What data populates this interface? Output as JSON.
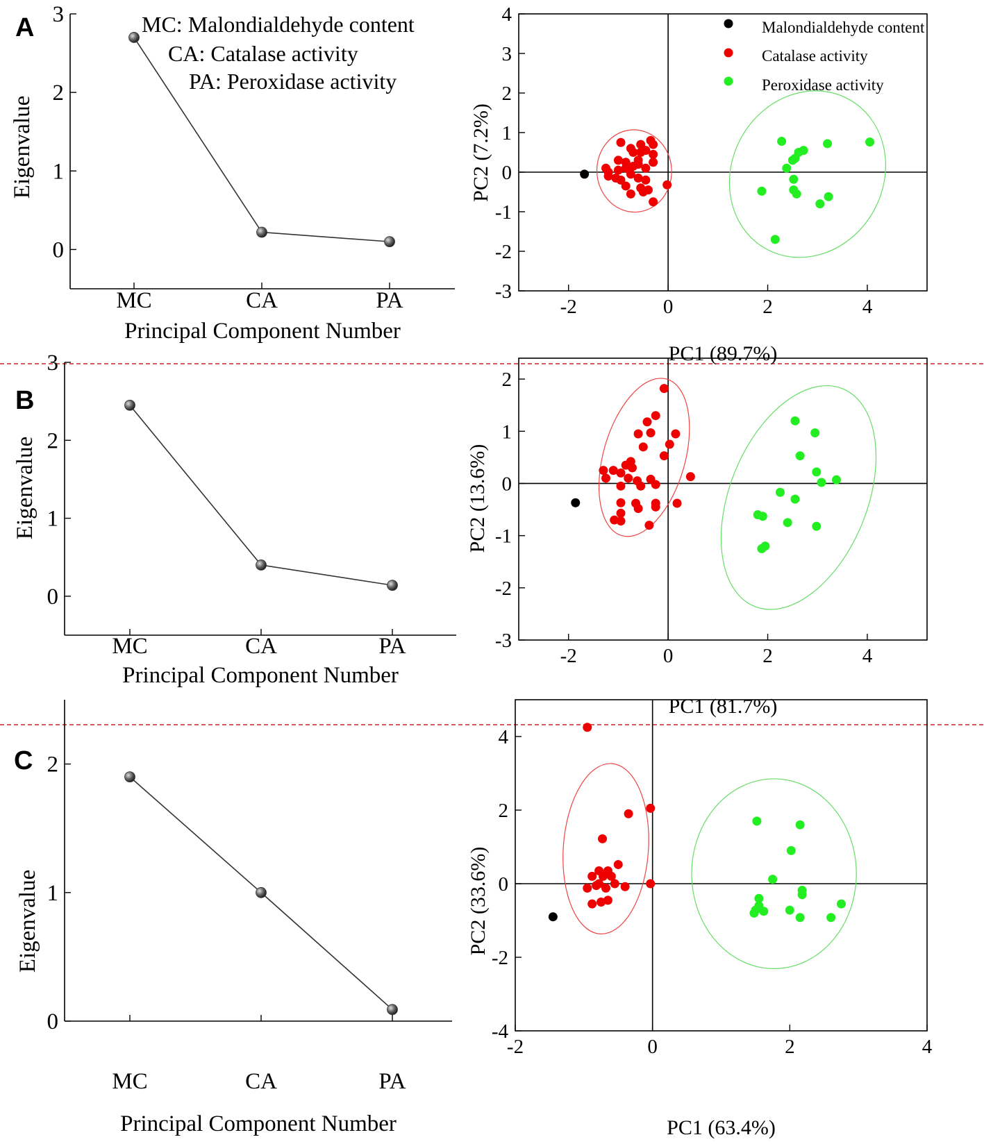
{
  "colors": {
    "mc": "#000000",
    "ca": "#ee0000",
    "pa": "#22ee22",
    "ca_ellipse": "#ee4444",
    "pa_ellipse": "#66dd66",
    "separator": "#cc2222",
    "scree_line": "#333333"
  },
  "scree_abbreviations": {
    "mc": "MC: Malondialdehyde content",
    "ca": "CA: Catalase activity",
    "pa": "PA: Peroxidase activity"
  },
  "legend": {
    "mc": "Malondialdehyde content",
    "ca": "Catalase activity",
    "pa": "Peroxidase activity"
  },
  "chart_data": [
    {
      "panel": "A",
      "kind": "scree",
      "type": "line",
      "categories": [
        "MC",
        "CA",
        "PA"
      ],
      "values": [
        2.7,
        0.22,
        0.1
      ],
      "xlabel": "Principal Component Number",
      "ylabel": "Eigenvalue",
      "ylim": [
        -0.5,
        3
      ],
      "yticks": [
        0,
        1,
        2,
        3
      ],
      "tick_labels": [
        "0",
        "1",
        "2",
        "3"
      ]
    },
    {
      "panel": "A",
      "kind": "pca",
      "type": "scatter",
      "xlabel": "PC1 (89.7%)",
      "ylabel": "PC2 (7.2%)",
      "xlim": [
        -3,
        5.2
      ],
      "ylim": [
        -3,
        4
      ],
      "xticks": [
        -2,
        0,
        2,
        4
      ],
      "yticks": [
        -3,
        -2,
        -1,
        0,
        1,
        2,
        3,
        4
      ],
      "xtick_labels": [
        "-2",
        "0",
        "2",
        "4"
      ],
      "ytick_labels": [
        "-3",
        "-2",
        "-1",
        "0",
        "1",
        "2",
        "3",
        "4"
      ],
      "series": [
        {
          "name": "Malondialdehyde content",
          "key": "mc",
          "points": [
            [
              -1.68,
              -0.05
            ]
          ]
        },
        {
          "name": "Catalase activity",
          "key": "ca",
          "points": [
            [
              -0.95,
              0.75
            ],
            [
              -0.75,
              0.6
            ],
            [
              -0.55,
              0.7
            ],
            [
              -0.35,
              0.8
            ],
            [
              -0.3,
              0.7
            ],
            [
              -0.7,
              0.5
            ],
            [
              -0.55,
              0.5
            ],
            [
              -0.45,
              0.55
            ],
            [
              -1.0,
              0.3
            ],
            [
              -0.85,
              0.25
            ],
            [
              -0.6,
              0.3
            ],
            [
              -0.3,
              0.45
            ],
            [
              -0.3,
              0.25
            ],
            [
              -1.25,
              0.1
            ],
            [
              -1.2,
              0.0
            ],
            [
              -1.0,
              0.05
            ],
            [
              -0.85,
              0.1
            ],
            [
              -0.7,
              0.15
            ],
            [
              -0.6,
              0.2
            ],
            [
              -0.45,
              0.1
            ],
            [
              -1.2,
              -0.1
            ],
            [
              -1.05,
              -0.15
            ],
            [
              -0.95,
              -0.2
            ],
            [
              -0.75,
              -0.05
            ],
            [
              -0.6,
              -0.15
            ],
            [
              -0.45,
              -0.2
            ],
            [
              -0.55,
              -0.4
            ],
            [
              -0.5,
              -0.5
            ],
            [
              -0.4,
              -0.45
            ],
            [
              -0.85,
              -0.35
            ],
            [
              -0.75,
              -0.55
            ],
            [
              -0.3,
              -0.75
            ],
            [
              -0.02,
              -0.32
            ]
          ]
        },
        {
          "name": "Peroxidase activity",
          "key": "pa",
          "points": [
            [
              2.28,
              0.78
            ],
            [
              2.72,
              0.55
            ],
            [
              2.62,
              0.5
            ],
            [
              2.55,
              0.35
            ],
            [
              2.5,
              0.3
            ],
            [
              2.38,
              0.1
            ],
            [
              3.2,
              0.72
            ],
            [
              4.05,
              0.76
            ],
            [
              1.88,
              -0.48
            ],
            [
              2.52,
              -0.45
            ],
            [
              2.58,
              -0.55
            ],
            [
              3.22,
              -0.62
            ],
            [
              3.05,
              -0.8
            ],
            [
              2.52,
              -0.18
            ],
            [
              2.15,
              -1.7
            ]
          ]
        }
      ],
      "ellipses": [
        {
          "key": "ca",
          "cx": -0.68,
          "cy": 0.03,
          "rx": 0.75,
          "ry": 1.04,
          "angle_deg": -4
        },
        {
          "key": "pa",
          "cx": 2.8,
          "cy": -0.05,
          "rx": 1.52,
          "ry": 2.16,
          "angle_deg": 29
        }
      ]
    },
    {
      "panel": "B",
      "kind": "scree",
      "type": "line",
      "categories": [
        "MC",
        "CA",
        "PA"
      ],
      "values": [
        2.45,
        0.4,
        0.14
      ],
      "xlabel": "Principal Component Number",
      "ylabel": "Eigenvalue",
      "ylim": [
        -0.5,
        3
      ],
      "yticks": [
        0,
        1,
        2,
        3
      ],
      "tick_labels": [
        "0",
        "1",
        "2",
        "3"
      ]
    },
    {
      "panel": "B",
      "kind": "pca",
      "type": "scatter",
      "xlabel": "PC1 (81.7%)",
      "ylabel": "PC2 (13.6%)",
      "xlim": [
        -3,
        5.2
      ],
      "ylim": [
        -3,
        2.4
      ],
      "xticks": [
        -2,
        0,
        2,
        4
      ],
      "yticks": [
        -3,
        -2,
        -1,
        0,
        1,
        2
      ],
      "xtick_labels": [
        "-2",
        "0",
        "2",
        "4"
      ],
      "ytick_labels": [
        "-3",
        "-2",
        "-1",
        "0",
        "1",
        "2"
      ],
      "series": [
        {
          "name": "Malondialdehyde content",
          "key": "mc",
          "points": [
            [
              -1.86,
              -0.37
            ]
          ]
        },
        {
          "name": "Catalase activity",
          "key": "ca",
          "points": [
            [
              -0.08,
              1.82
            ],
            [
              -0.25,
              1.3
            ],
            [
              -0.42,
              1.18
            ],
            [
              -0.6,
              0.95
            ],
            [
              -0.35,
              0.97
            ],
            [
              0.15,
              0.95
            ],
            [
              0.03,
              0.75
            ],
            [
              -0.5,
              0.7
            ],
            [
              -0.08,
              0.53
            ],
            [
              -0.75,
              0.42
            ],
            [
              -0.85,
              0.35
            ],
            [
              -1.3,
              0.25
            ],
            [
              -1.1,
              0.25
            ],
            [
              -0.95,
              0.2
            ],
            [
              -0.72,
              0.3
            ],
            [
              -1.25,
              0.1
            ],
            [
              -0.8,
              0.1
            ],
            [
              -0.62,
              0.05
            ],
            [
              -0.35,
              0.08
            ],
            [
              0.45,
              0.13
            ],
            [
              -0.95,
              -0.05
            ],
            [
              -0.55,
              -0.05
            ],
            [
              -0.25,
              -0.02
            ],
            [
              -0.95,
              -0.37
            ],
            [
              -0.65,
              -0.38
            ],
            [
              -0.25,
              -0.38
            ],
            [
              -0.6,
              -0.48
            ],
            [
              -0.25,
              -0.45
            ],
            [
              0.18,
              -0.38
            ],
            [
              -0.95,
              -0.57
            ],
            [
              -1.08,
              -0.7
            ],
            [
              -0.95,
              -0.72
            ],
            [
              -0.38,
              -0.8
            ]
          ]
        },
        {
          "name": "Peroxidase activity",
          "key": "pa",
          "points": [
            [
              2.55,
              1.2
            ],
            [
              2.95,
              0.97
            ],
            [
              2.65,
              0.53
            ],
            [
              2.98,
              0.22
            ],
            [
              3.08,
              0.02
            ],
            [
              3.38,
              0.07
            ],
            [
              2.25,
              -0.17
            ],
            [
              2.55,
              -0.3
            ],
            [
              1.8,
              -0.6
            ],
            [
              1.9,
              -0.63
            ],
            [
              2.4,
              -0.75
            ],
            [
              2.98,
              -0.82
            ],
            [
              1.95,
              -1.2
            ],
            [
              1.88,
              -1.25
            ]
          ]
        }
      ],
      "ellipses": [
        {
          "key": "ca",
          "cx": -0.48,
          "cy": 0.5,
          "rx": 0.82,
          "ry": 1.56,
          "angle_deg": 16
        },
        {
          "key": "pa",
          "cx": 2.62,
          "cy": -0.27,
          "rx": 1.38,
          "ry": 2.25,
          "angle_deg": 22
        }
      ]
    },
    {
      "panel": "C",
      "kind": "scree",
      "type": "line",
      "categories": [
        "MC",
        "CA",
        "PA"
      ],
      "values": [
        1.9,
        1.0,
        0.09
      ],
      "xlabel": "Principal Component Number",
      "ylabel": "Eigenvalue",
      "ylim": [
        0,
        2.5
      ],
      "yticks": [
        0,
        1,
        2
      ],
      "tick_labels": [
        "0",
        "1",
        "2"
      ]
    },
    {
      "panel": "C",
      "kind": "pca",
      "type": "scatter",
      "xlabel": "PC1 (63.4%)",
      "ylabel": "PC2 (33.6%)",
      "xlim": [
        -2,
        4
      ],
      "ylim": [
        -4,
        5
      ],
      "xticks": [
        -2,
        0,
        2,
        4
      ],
      "yticks": [
        -4,
        -2,
        0,
        2,
        4
      ],
      "xtick_labels": [
        "-2",
        "0",
        "2",
        "4"
      ],
      "ytick_labels": [
        "-4",
        "-2",
        "0",
        "2",
        "4"
      ],
      "series": [
        {
          "name": "Malondialdehyde content",
          "key": "mc",
          "points": [
            [
              -1.45,
              -0.9
            ]
          ]
        },
        {
          "name": "Catalase activity",
          "key": "ca",
          "points": [
            [
              -0.95,
              4.25
            ],
            [
              -0.35,
              1.9
            ],
            [
              -0.03,
              2.05
            ],
            [
              -0.73,
              1.22
            ],
            [
              -0.5,
              0.52
            ],
            [
              -0.78,
              0.35
            ],
            [
              -0.65,
              0.35
            ],
            [
              -0.88,
              0.2
            ],
            [
              -0.72,
              0.2
            ],
            [
              -0.6,
              0.2
            ],
            [
              -0.78,
              0.0
            ],
            [
              -0.55,
              0.0
            ],
            [
              -0.95,
              -0.12
            ],
            [
              -0.82,
              -0.05
            ],
            [
              -0.68,
              -0.12
            ],
            [
              -0.4,
              -0.08
            ],
            [
              -0.03,
              0.0
            ],
            [
              -0.88,
              -0.55
            ],
            [
              -0.75,
              -0.5
            ],
            [
              -0.65,
              -0.45
            ]
          ]
        },
        {
          "name": "Peroxidase activity",
          "key": "pa",
          "points": [
            [
              1.52,
              1.7
            ],
            [
              2.15,
              1.6
            ],
            [
              2.02,
              0.9
            ],
            [
              1.75,
              0.12
            ],
            [
              2.18,
              -0.18
            ],
            [
              2.18,
              -0.3
            ],
            [
              2.75,
              -0.55
            ],
            [
              1.55,
              -0.4
            ],
            [
              1.55,
              -0.6
            ],
            [
              1.5,
              -0.72
            ],
            [
              1.48,
              -0.8
            ],
            [
              1.62,
              -0.75
            ],
            [
              2.0,
              -0.72
            ],
            [
              2.15,
              -0.92
            ],
            [
              2.6,
              -0.92
            ]
          ]
        }
      ],
      "ellipses": [
        {
          "key": "ca",
          "cx": -0.68,
          "cy": 0.95,
          "rx": 0.62,
          "ry": 2.32,
          "angle_deg": 4
        },
        {
          "key": "pa",
          "cx": 1.77,
          "cy": 0.27,
          "rx": 1.2,
          "ry": 2.58,
          "angle_deg": 0
        }
      ]
    }
  ]
}
